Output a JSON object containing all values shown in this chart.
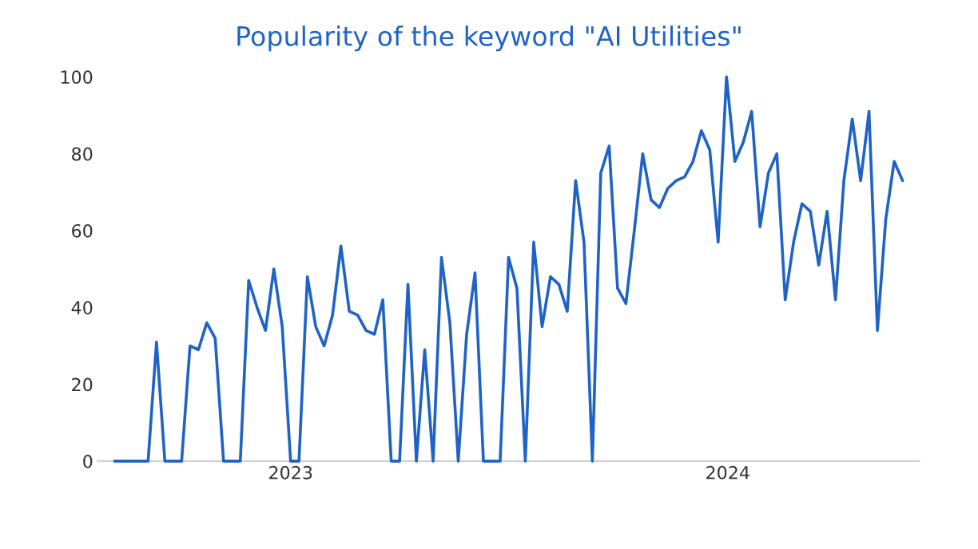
{
  "chart_data": {
    "type": "line",
    "title": "Popularity of the keyword \"AI Utilities\"",
    "x": [
      "2022-08-07",
      "2022-08-14",
      "2022-08-21",
      "2022-08-28",
      "2022-09-04",
      "2022-09-11",
      "2022-09-18",
      "2022-09-25",
      "2022-10-02",
      "2022-10-09",
      "2022-10-16",
      "2022-10-23",
      "2022-10-30",
      "2022-11-06",
      "2022-11-13",
      "2022-11-20",
      "2022-11-27",
      "2022-12-04",
      "2022-12-11",
      "2022-12-18",
      "2022-12-25",
      "2023-01-01",
      "2023-01-08",
      "2023-01-15",
      "2023-01-22",
      "2023-01-29",
      "2023-02-05",
      "2023-02-12",
      "2023-02-19",
      "2023-02-26",
      "2023-03-05",
      "2023-03-12",
      "2023-03-19",
      "2023-03-26",
      "2023-04-02",
      "2023-04-09",
      "2023-04-16",
      "2023-04-23",
      "2023-04-30",
      "2023-05-07",
      "2023-05-14",
      "2023-05-21",
      "2023-05-28",
      "2023-06-04",
      "2023-06-11",
      "2023-06-18",
      "2023-06-25",
      "2023-07-02",
      "2023-07-09",
      "2023-07-16",
      "2023-07-23",
      "2023-07-30",
      "2023-08-06",
      "2023-08-13",
      "2023-08-20",
      "2023-08-27",
      "2023-09-03",
      "2023-09-10",
      "2023-09-17",
      "2023-09-24",
      "2023-10-01",
      "2023-10-08",
      "2023-10-15",
      "2023-10-22",
      "2023-10-29",
      "2023-11-05",
      "2023-11-12",
      "2023-11-19",
      "2023-11-26",
      "2023-12-03",
      "2023-12-10",
      "2023-12-17",
      "2023-12-24",
      "2023-12-31",
      "2024-01-07",
      "2024-01-14",
      "2024-01-21",
      "2024-01-28",
      "2024-02-04",
      "2024-02-11",
      "2024-02-18",
      "2024-02-25",
      "2024-03-03",
      "2024-03-10",
      "2024-03-17",
      "2024-03-24",
      "2024-03-31",
      "2024-04-07",
      "2024-04-14",
      "2024-04-21",
      "2024-04-28",
      "2024-05-05",
      "2024-05-12",
      "2024-05-19",
      "2024-05-26"
    ],
    "series": [
      {
        "color": "#1f63c6",
        "values": [
          0,
          0,
          0,
          0,
          0,
          31,
          0,
          0,
          0,
          30,
          29,
          36,
          32,
          0,
          0,
          0,
          47,
          40,
          34,
          50,
          35,
          0,
          0,
          48,
          35,
          30,
          38,
          56,
          39,
          38,
          34,
          33,
          42,
          0,
          0,
          46,
          0,
          29,
          0,
          53,
          36,
          0,
          33,
          49,
          0,
          0,
          0,
          53,
          45,
          0,
          57,
          35,
          48,
          46,
          39,
          73,
          57,
          0,
          75,
          82,
          45,
          41,
          60,
          80,
          68,
          66,
          71,
          73,
          74,
          78,
          86,
          81,
          57,
          100,
          78,
          83,
          91,
          61,
          75,
          80,
          42,
          57,
          67,
          65,
          51,
          65,
          42,
          73,
          89,
          73,
          91,
          34,
          63,
          78,
          73
        ]
      }
    ],
    "xlim": [
      "2022-07-24",
      "2024-06-09"
    ],
    "xticks": [
      "2023",
      "2024"
    ],
    "ylim": [
      0,
      100
    ],
    "yticks": [
      0,
      20,
      40,
      60,
      80,
      100
    ],
    "grid": false,
    "legend": false,
    "marker": "none",
    "line_style": "solid"
  }
}
